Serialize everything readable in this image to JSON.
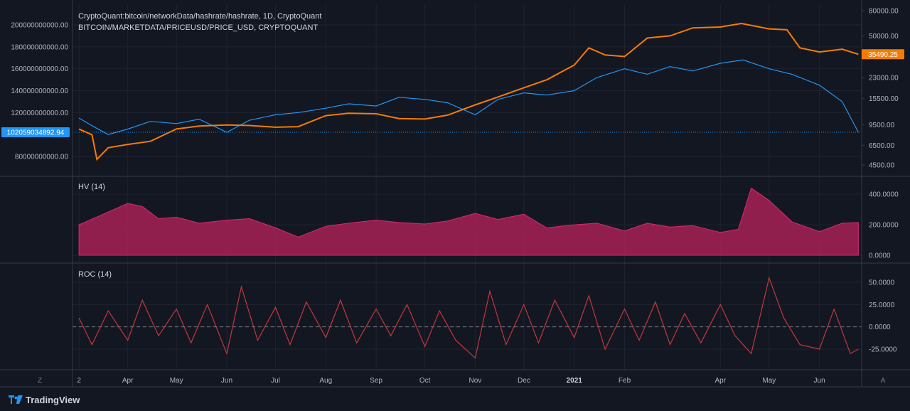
{
  "chart_data": [
    {
      "type": "line",
      "legend": [
        "CryptoQuant:bitcoin/networkData/hashrate/hashrate, 1D, CryptoQuant",
        "BITCOIN/MARKETDATA/PRICEUSD/PRICE_USD, CRYPTOQUANT"
      ],
      "left_axis": {
        "ticks": [
          "200000000000.00",
          "180000000000.00",
          "160000000000.00",
          "140000000000.00",
          "120000000000.00",
          "80000000000.00"
        ],
        "tick_values": [
          200000000000,
          180000000000,
          160000000000,
          140000000000,
          120000000000,
          80000000000
        ],
        "current_label": "102059034892.94",
        "current_value": 102059034892.94
      },
      "right_axis": {
        "scale": "log",
        "ticks": [
          "80000.00",
          "50000.00",
          "35490.25",
          "23000.00",
          "15500.00",
          "9500.00",
          "6500.00",
          "4500.00"
        ],
        "tick_values": [
          80000,
          50000,
          23000,
          15500,
          9500,
          6500,
          4500
        ],
        "current_label": "35490.25",
        "current_value": 35490.25
      },
      "series": [
        {
          "color": "#2196f3",
          "x": [
            "2020-03-02",
            "2020-03-10",
            "2020-03-20",
            "2020-04-01",
            "2020-04-15",
            "2020-05-01",
            "2020-05-15",
            "2020-06-01",
            "2020-06-15",
            "2020-07-01",
            "2020-07-15",
            "2020-08-01",
            "2020-08-15",
            "2020-09-01",
            "2020-09-15",
            "2020-10-01",
            "2020-10-15",
            "2020-11-01",
            "2020-11-15",
            "2020-12-01",
            "2020-12-15",
            "2021-01-01",
            "2021-01-15",
            "2021-02-01",
            "2021-02-15",
            "2021-03-01",
            "2021-03-15",
            "2021-04-01",
            "2021-04-15",
            "2021-05-01",
            "2021-05-15",
            "2021-06-01",
            "2021-06-15",
            "2021-06-25"
          ],
          "values": [
            115000000000.0,
            108000000000.0,
            100000000000.0,
            105000000000.0,
            112000000000.0,
            110000000000.0,
            114000000000.0,
            102000000000.0,
            113000000000.0,
            118000000000.0,
            120000000000.0,
            124000000000.0,
            128000000000.0,
            126000000000.0,
            134000000000.0,
            132000000000.0,
            129000000000.0,
            118000000000.0,
            132000000000.0,
            138000000000.0,
            136000000000.0,
            140000000000.0,
            152000000000.0,
            160000000000.0,
            155000000000.0,
            162000000000.0,
            158000000000.0,
            165000000000.0,
            168000000000.0,
            160000000000.0,
            155000000000.0,
            145000000000.0,
            130000000000.0,
            102000000000.0
          ]
        },
        {
          "color": "#f57c00",
          "x": [
            "2020-03-02",
            "2020-03-10",
            "2020-03-13",
            "2020-03-20",
            "2020-04-01",
            "2020-04-15",
            "2020-05-01",
            "2020-05-15",
            "2020-06-01",
            "2020-06-15",
            "2020-07-01",
            "2020-07-15",
            "2020-08-01",
            "2020-08-15",
            "2020-09-01",
            "2020-09-15",
            "2020-10-01",
            "2020-10-15",
            "2020-11-01",
            "2020-11-15",
            "2020-12-01",
            "2020-12-15",
            "2021-01-01",
            "2021-01-10",
            "2021-01-20",
            "2021-02-01",
            "2021-02-15",
            "2021-03-01",
            "2021-03-15",
            "2021-04-01",
            "2021-04-14",
            "2021-05-01",
            "2021-05-12",
            "2021-05-20",
            "2021-06-01",
            "2021-06-15",
            "2021-06-25"
          ],
          "values": [
            8800,
            7900,
            5000,
            6200,
            6600,
            7000,
            8800,
            9300,
            9500,
            9400,
            9100,
            9200,
            11300,
            11800,
            11700,
            10700,
            10600,
            11400,
            13800,
            16000,
            19000,
            22000,
            29000,
            40000,
            35000,
            34000,
            48000,
            50000,
            58000,
            59000,
            63000,
            57000,
            56000,
            40000,
            37000,
            39000,
            35490
          ]
        }
      ],
      "hline": 102059034892.94
    },
    {
      "type": "area",
      "title": "HV (14)",
      "color": "#b5215a",
      "ticks": [
        "400.0000",
        "200.0000",
        "0.0000"
      ],
      "tick_values": [
        400,
        200,
        0
      ],
      "ylim": [
        0,
        480
      ],
      "x": [
        "2020-03-02",
        "2020-03-15",
        "2020-04-01",
        "2020-04-10",
        "2020-04-20",
        "2020-05-01",
        "2020-05-15",
        "2020-06-01",
        "2020-06-15",
        "2020-07-01",
        "2020-07-15",
        "2020-08-01",
        "2020-08-15",
        "2020-09-01",
        "2020-09-15",
        "2020-10-01",
        "2020-10-15",
        "2020-11-01",
        "2020-11-15",
        "2020-12-01",
        "2020-12-15",
        "2021-01-01",
        "2021-01-15",
        "2021-02-01",
        "2021-02-15",
        "2021-03-01",
        "2021-03-15",
        "2021-04-01",
        "2021-04-12",
        "2021-04-20",
        "2021-05-01",
        "2021-05-15",
        "2021-06-01",
        "2021-06-15",
        "2021-06-25"
      ],
      "values": [
        200,
        260,
        340,
        320,
        240,
        250,
        210,
        230,
        240,
        180,
        120,
        190,
        210,
        230,
        215,
        205,
        225,
        275,
        235,
        270,
        180,
        200,
        210,
        160,
        210,
        185,
        195,
        150,
        170,
        440,
        360,
        220,
        155,
        210,
        215
      ]
    },
    {
      "type": "line",
      "title": "ROC (14)",
      "color": "#c2383a",
      "ticks": [
        "50.0000",
        "25.0000",
        "0.0000",
        "-25.0000"
      ],
      "tick_values": [
        50,
        25,
        0,
        -25
      ],
      "ylim": [
        -40,
        60
      ],
      "x": [
        "2020-03-02",
        "2020-03-10",
        "2020-03-20",
        "2020-04-01",
        "2020-04-10",
        "2020-04-20",
        "2020-05-01",
        "2020-05-10",
        "2020-05-20",
        "2020-06-01",
        "2020-06-10",
        "2020-06-20",
        "2020-07-01",
        "2020-07-10",
        "2020-07-20",
        "2020-08-01",
        "2020-08-10",
        "2020-08-20",
        "2020-09-01",
        "2020-09-10",
        "2020-09-20",
        "2020-10-01",
        "2020-10-10",
        "2020-10-20",
        "2020-11-01",
        "2020-11-10",
        "2020-11-20",
        "2020-12-01",
        "2020-12-10",
        "2020-12-20",
        "2021-01-01",
        "2021-01-10",
        "2021-01-20",
        "2021-02-01",
        "2021-02-10",
        "2021-02-20",
        "2021-03-01",
        "2021-03-10",
        "2021-03-20",
        "2021-04-01",
        "2021-04-10",
        "2021-04-20",
        "2021-05-01",
        "2021-05-10",
        "2021-05-20",
        "2021-06-01",
        "2021-06-10",
        "2021-06-20",
        "2021-06-25"
      ],
      "values": [
        10,
        -20,
        18,
        -15,
        30,
        -10,
        20,
        -18,
        25,
        -30,
        45,
        -15,
        22,
        -20,
        28,
        -12,
        30,
        -18,
        20,
        -10,
        25,
        -22,
        18,
        -15,
        -35,
        40,
        -20,
        25,
        -18,
        30,
        -12,
        35,
        -25,
        20,
        -15,
        28,
        -20,
        15,
        -18,
        25,
        -10,
        -30,
        55,
        10,
        -20,
        -25,
        20,
        -30,
        -25
      ]
    }
  ],
  "x_axis": {
    "labels": [
      "2",
      "Apr",
      "May",
      "Jun",
      "Jul",
      "Aug",
      "Sep",
      "Oct",
      "Nov",
      "Dec",
      "2021",
      "Feb",
      "Apr",
      "May",
      "Jun"
    ],
    "dates": [
      "2020-03-02",
      "2020-04-01",
      "2020-05-01",
      "2020-06-01",
      "2020-07-01",
      "2020-08-01",
      "2020-09-01",
      "2020-10-01",
      "2020-11-01",
      "2020-12-01",
      "2021-01-01",
      "2021-02-01",
      "2021-04-01",
      "2021-05-01",
      "2021-06-01"
    ],
    "bold": [
      "2021"
    ],
    "range": [
      "2020-02-27",
      "2021-06-27"
    ],
    "left_button": "Z",
    "right_button": "A"
  },
  "colors": {
    "background": "#131722",
    "grid": "#1f2330",
    "border": "#363a45",
    "text": "#b2b5be"
  },
  "brand": {
    "name": "TradingView",
    "icon": "tradingview-logo-icon"
  }
}
